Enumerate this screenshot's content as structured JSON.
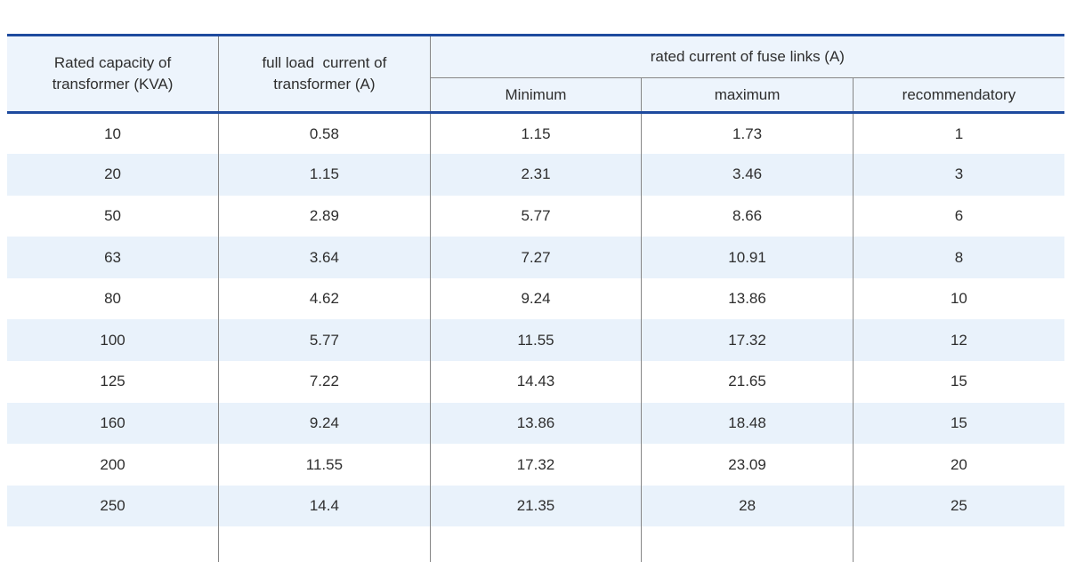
{
  "colors": {
    "rule_blue": "#1e4a9e",
    "header_bg": "#edf4fc",
    "row_alt_bg": "#e9f2fb",
    "divider_gray": "#868686"
  },
  "table": {
    "header": {
      "capacity": "Rated capacity of\ntransformer (KVA)",
      "full_load": "full load  current of\ntransformer (A)",
      "fuse_links_group": "rated current of fuse links (A)",
      "minimum": "Minimum",
      "maximum": "maximum",
      "recommendatory": "recommendatory"
    },
    "rows": [
      [
        "10",
        "0.58",
        "1.15",
        "1.73",
        "1"
      ],
      [
        "20",
        "1.15",
        "2.31",
        "3.46",
        "3"
      ],
      [
        "50",
        "2.89",
        "5.77",
        "8.66",
        "6"
      ],
      [
        "63",
        "3.64",
        "7.27",
        "10.91",
        "8"
      ],
      [
        "80",
        "4.62",
        "9.24",
        "13.86",
        "10"
      ],
      [
        "100",
        "5.77",
        "11.55",
        "17.32",
        "12"
      ],
      [
        "125",
        "7.22",
        "14.43",
        "21.65",
        "15"
      ],
      [
        "160",
        "9.24",
        "13.86",
        "18.48",
        "15"
      ],
      [
        "200",
        "11.55",
        "17.32",
        "23.09",
        "20"
      ],
      [
        "250",
        "14.4",
        "21.35",
        "28",
        "25"
      ]
    ]
  },
  "chart_data": {
    "type": "table",
    "title": "rated current of fuse links (A)",
    "columns": [
      "Rated capacity of transformer (KVA)",
      "full load current of transformer (A)",
      "rated current of fuse links (A) - Minimum",
      "rated current of fuse links (A) - maximum",
      "rated current of fuse links (A) - recommendatory"
    ],
    "rows": [
      [
        10,
        0.58,
        1.15,
        1.73,
        1
      ],
      [
        20,
        1.15,
        2.31,
        3.46,
        3
      ],
      [
        50,
        2.89,
        5.77,
        8.66,
        6
      ],
      [
        63,
        3.64,
        7.27,
        10.91,
        8
      ],
      [
        80,
        4.62,
        9.24,
        13.86,
        10
      ],
      [
        100,
        5.77,
        11.55,
        17.32,
        12
      ],
      [
        125,
        7.22,
        14.43,
        21.65,
        15
      ],
      [
        160,
        9.24,
        13.86,
        18.48,
        15
      ],
      [
        200,
        11.55,
        17.32,
        23.09,
        20
      ],
      [
        250,
        14.4,
        21.35,
        28,
        25
      ]
    ]
  }
}
